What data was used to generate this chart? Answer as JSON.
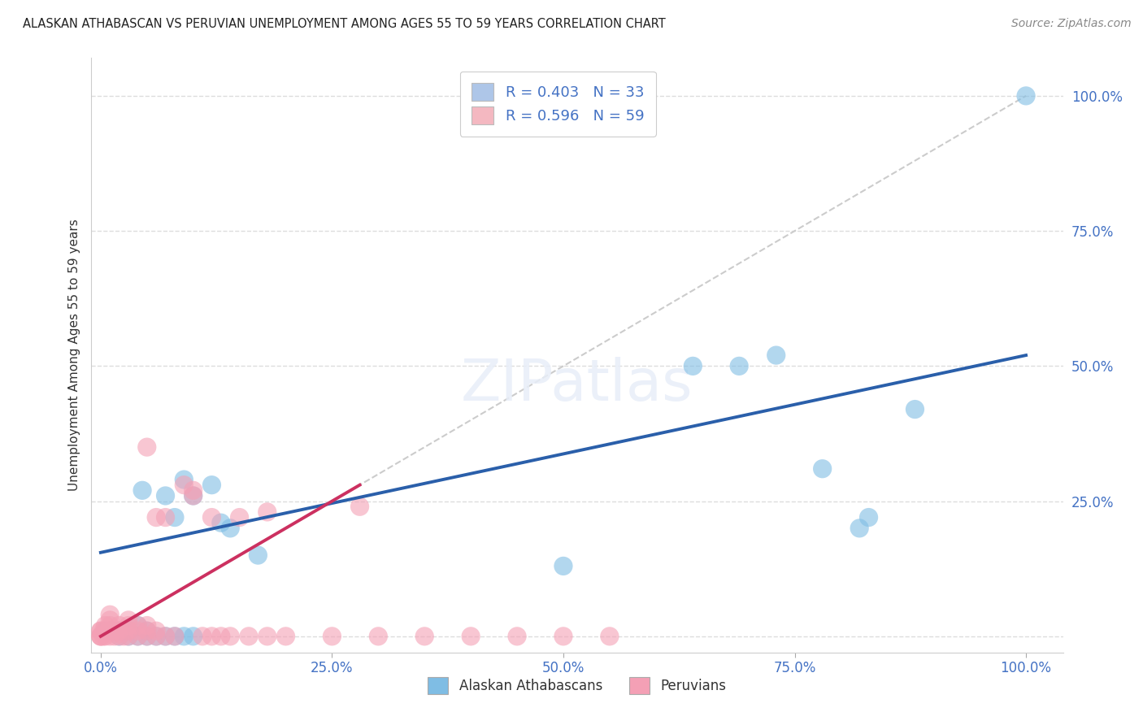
{
  "title": "ALASKAN ATHABASCAN VS PERUVIAN UNEMPLOYMENT AMONG AGES 55 TO 59 YEARS CORRELATION CHART",
  "source": "Source: ZipAtlas.com",
  "ylabel": "Unemployment Among Ages 55 to 59 years",
  "xtick_vals": [
    0.0,
    0.25,
    0.5,
    0.75,
    1.0
  ],
  "ytick_vals": [
    0.0,
    0.25,
    0.5,
    0.75,
    1.0
  ],
  "xtick_labels": [
    "0.0%",
    "25.0%",
    "50.0%",
    "75.0%",
    "100.0%"
  ],
  "ytick_labels": [
    "",
    "25.0%",
    "50.0%",
    "75.0%",
    "100.0%"
  ],
  "legend_entries": [
    {
      "label": "R = 0.403   N = 33",
      "color": "#aec6e8"
    },
    {
      "label": "R = 0.596   N = 59",
      "color": "#f4b8c1"
    }
  ],
  "legend_bottom": [
    "Alaskan Athabascans",
    "Peruvians"
  ],
  "blue_scatter": [
    [
      0.005,
      0.01
    ],
    [
      0.01,
      0.01
    ],
    [
      0.02,
      0.01
    ],
    [
      0.02,
      0.0
    ],
    [
      0.03,
      0.0
    ],
    [
      0.03,
      0.01
    ],
    [
      0.04,
      0.0
    ],
    [
      0.04,
      0.02
    ],
    [
      0.05,
      0.0
    ],
    [
      0.05,
      0.01
    ],
    [
      0.06,
      0.0
    ],
    [
      0.07,
      0.0
    ],
    [
      0.07,
      0.26
    ],
    [
      0.08,
      0.22
    ],
    [
      0.08,
      0.0
    ],
    [
      0.09,
      0.29
    ],
    [
      0.09,
      0.0
    ],
    [
      0.1,
      0.26
    ],
    [
      0.1,
      0.0
    ],
    [
      0.12,
      0.28
    ],
    [
      0.13,
      0.21
    ],
    [
      0.14,
      0.2
    ],
    [
      0.17,
      0.15
    ],
    [
      0.045,
      0.27
    ],
    [
      0.5,
      0.13
    ],
    [
      0.64,
      0.5
    ],
    [
      0.69,
      0.5
    ],
    [
      0.73,
      0.52
    ],
    [
      0.78,
      0.31
    ],
    [
      0.82,
      0.2
    ],
    [
      0.83,
      0.22
    ],
    [
      0.88,
      0.42
    ],
    [
      1.0,
      1.0
    ]
  ],
  "pink_scatter": [
    [
      0.0,
      0.0
    ],
    [
      0.0,
      0.0
    ],
    [
      0.0,
      0.0
    ],
    [
      0.0,
      0.01
    ],
    [
      0.0,
      0.01
    ],
    [
      0.003,
      0.0
    ],
    [
      0.003,
      0.01
    ],
    [
      0.005,
      0.02
    ],
    [
      0.005,
      0.0
    ],
    [
      0.008,
      0.01
    ],
    [
      0.01,
      0.0
    ],
    [
      0.01,
      0.01
    ],
    [
      0.01,
      0.02
    ],
    [
      0.01,
      0.03
    ],
    [
      0.01,
      0.04
    ],
    [
      0.015,
      0.0
    ],
    [
      0.015,
      0.01
    ],
    [
      0.02,
      0.0
    ],
    [
      0.02,
      0.01
    ],
    [
      0.02,
      0.02
    ],
    [
      0.025,
      0.0
    ],
    [
      0.03,
      0.0
    ],
    [
      0.03,
      0.01
    ],
    [
      0.03,
      0.02
    ],
    [
      0.03,
      0.03
    ],
    [
      0.04,
      0.0
    ],
    [
      0.04,
      0.01
    ],
    [
      0.04,
      0.02
    ],
    [
      0.05,
      0.0
    ],
    [
      0.05,
      0.01
    ],
    [
      0.05,
      0.02
    ],
    [
      0.05,
      0.35
    ],
    [
      0.06,
      0.0
    ],
    [
      0.06,
      0.01
    ],
    [
      0.06,
      0.22
    ],
    [
      0.07,
      0.0
    ],
    [
      0.07,
      0.22
    ],
    [
      0.08,
      0.0
    ],
    [
      0.09,
      0.28
    ],
    [
      0.1,
      0.26
    ],
    [
      0.1,
      0.27
    ],
    [
      0.11,
      0.0
    ],
    [
      0.12,
      0.0
    ],
    [
      0.12,
      0.22
    ],
    [
      0.13,
      0.0
    ],
    [
      0.14,
      0.0
    ],
    [
      0.15,
      0.22
    ],
    [
      0.16,
      0.0
    ],
    [
      0.18,
      0.0
    ],
    [
      0.18,
      0.23
    ],
    [
      0.2,
      0.0
    ],
    [
      0.25,
      0.0
    ],
    [
      0.28,
      0.24
    ],
    [
      0.3,
      0.0
    ],
    [
      0.35,
      0.0
    ],
    [
      0.4,
      0.0
    ],
    [
      0.45,
      0.0
    ],
    [
      0.5,
      0.0
    ],
    [
      0.55,
      0.0
    ]
  ],
  "blue_line": {
    "x0": 0.0,
    "y0": 0.155,
    "x1": 1.0,
    "y1": 0.52
  },
  "pink_line": {
    "x0": 0.0,
    "y0": 0.0,
    "x1": 0.28,
    "y1": 0.28
  },
  "diagonal_line": {
    "x0": 0.0,
    "y0": 0.0,
    "x1": 1.0,
    "y1": 1.0
  },
  "blue_color": "#7fbde4",
  "pink_color": "#f4a0b5",
  "blue_line_color": "#2a5faa",
  "pink_line_color": "#cc3060",
  "diagonal_color": "#cccccc",
  "background_color": "#ffffff",
  "grid_color": "#dddddd",
  "tick_label_color": "#4472c4",
  "title_color": "#222222",
  "source_color": "#888888",
  "ylabel_color": "#333333"
}
